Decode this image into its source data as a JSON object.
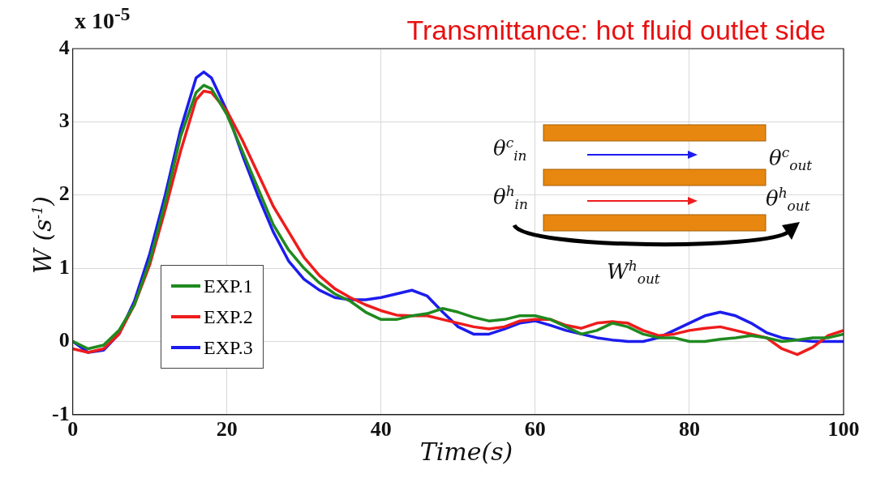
{
  "chart_data": {
    "type": "line",
    "title": "Transmittance: hot fluid outlet side",
    "xlabel": "Time(s)",
    "ylabel": "W (s$^{-1}$)",
    "annotations": [
      "x 10$^{-5}$",
      "θ$^{c}$$_{in}$",
      "θ$^{c}$$_{out}$",
      "θ$^{h}$$_{in}$",
      "θ$^{h}$$_{out}$",
      "W$^{h}$$_{out}$"
    ],
    "x": [
      0,
      2,
      4,
      6,
      8,
      10,
      12,
      14,
      16,
      17,
      18,
      20,
      22,
      24,
      26,
      28,
      30,
      32,
      34,
      36,
      38,
      40,
      42,
      44,
      46,
      48,
      50,
      52,
      54,
      56,
      58,
      60,
      62,
      64,
      66,
      68,
      70,
      72,
      74,
      76,
      78,
      80,
      82,
      84,
      86,
      88,
      90,
      92,
      94,
      96,
      98,
      100
    ],
    "series": [
      {
        "name": "EXP.1",
        "color": "#1f8a1f",
        "values": [
          0.0,
          -0.1,
          -0.05,
          0.15,
          0.5,
          1.1,
          1.9,
          2.8,
          3.4,
          3.5,
          3.45,
          3.1,
          2.6,
          2.1,
          1.6,
          1.25,
          1.0,
          0.8,
          0.65,
          0.55,
          0.4,
          0.3,
          0.3,
          0.35,
          0.38,
          0.45,
          0.4,
          0.33,
          0.28,
          0.3,
          0.35,
          0.35,
          0.3,
          0.2,
          0.1,
          0.15,
          0.25,
          0.2,
          0.1,
          0.05,
          0.05,
          0.0,
          0.0,
          0.03,
          0.05,
          0.08,
          0.05,
          0.0,
          0.02,
          0.05,
          0.05,
          0.1
        ]
      },
      {
        "name": "EXP.2",
        "color": "#ee1c1c",
        "values": [
          -0.1,
          -0.15,
          -0.1,
          0.1,
          0.5,
          1.05,
          1.8,
          2.6,
          3.3,
          3.42,
          3.4,
          3.15,
          2.75,
          2.3,
          1.85,
          1.5,
          1.15,
          0.9,
          0.72,
          0.6,
          0.5,
          0.42,
          0.36,
          0.35,
          0.35,
          0.3,
          0.25,
          0.2,
          0.17,
          0.2,
          0.28,
          0.3,
          0.3,
          0.22,
          0.18,
          0.25,
          0.27,
          0.25,
          0.15,
          0.08,
          0.1,
          0.15,
          0.18,
          0.2,
          0.15,
          0.1,
          0.05,
          -0.1,
          -0.18,
          -0.08,
          0.08,
          0.15
        ]
      },
      {
        "name": "EXP.3",
        "color": "#1c1cee",
        "values": [
          0.0,
          -0.15,
          -0.12,
          0.1,
          0.55,
          1.2,
          2.0,
          2.9,
          3.6,
          3.68,
          3.6,
          3.15,
          2.55,
          2.0,
          1.5,
          1.1,
          0.85,
          0.7,
          0.6,
          0.57,
          0.57,
          0.6,
          0.65,
          0.7,
          0.62,
          0.4,
          0.2,
          0.1,
          0.1,
          0.17,
          0.25,
          0.28,
          0.22,
          0.15,
          0.1,
          0.05,
          0.02,
          0.0,
          0.0,
          0.05,
          0.15,
          0.25,
          0.35,
          0.4,
          0.35,
          0.25,
          0.12,
          0.05,
          0.02,
          0.0,
          0.0,
          0.0
        ]
      }
    ],
    "xlim": [
      0,
      100
    ],
    "xticks": [
      0,
      20,
      40,
      60,
      80,
      100
    ],
    "ylim": [
      -1,
      4
    ],
    "yticks": [
      -1,
      0,
      1,
      2,
      3,
      4
    ],
    "grid": true,
    "legend": "bottom left",
    "marker": "none",
    "line_style": "solid"
  }
}
